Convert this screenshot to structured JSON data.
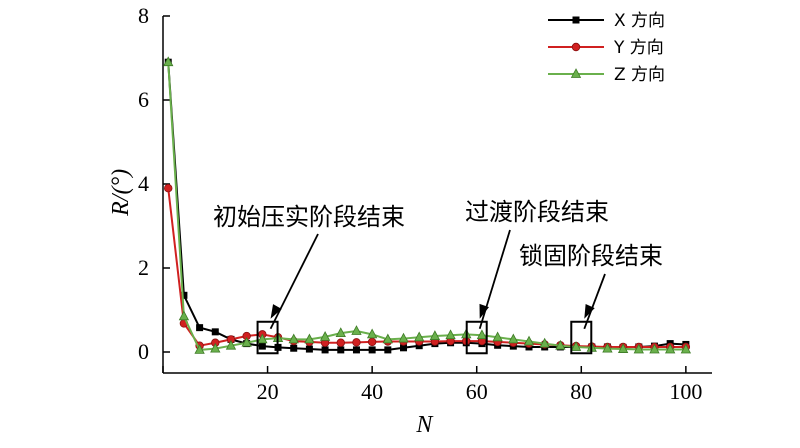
{
  "chart_data": {
    "type": "line",
    "xlabel": "N",
    "ylabel": "R/(°)",
    "xlim": [
      0,
      105
    ],
    "ylim": [
      -0.5,
      8
    ],
    "xticks": [
      0,
      20,
      40,
      60,
      80,
      100
    ],
    "yticks": [
      0,
      2,
      4,
      6,
      8
    ],
    "xtick_labels": [
      "",
      "20",
      "40",
      "60",
      "80",
      "100"
    ],
    "ytick_labels": [
      "0",
      "2",
      "4",
      "6",
      "8"
    ],
    "grid": false,
    "legend_position": "top-right",
    "series": [
      {
        "name": "X 方向",
        "color": "#000000",
        "marker": "square",
        "x": [
          1,
          4,
          7,
          10,
          13,
          16,
          19,
          22,
          25,
          28,
          31,
          34,
          37,
          40,
          43,
          46,
          49,
          52,
          55,
          58,
          61,
          64,
          67,
          70,
          73,
          76,
          79,
          82,
          85,
          88,
          91,
          94,
          97,
          100
        ],
        "y": [
          6.9,
          1.35,
          0.58,
          0.48,
          0.3,
          0.2,
          0.14,
          0.11,
          0.09,
          0.07,
          0.05,
          0.05,
          0.05,
          0.05,
          0.05,
          0.1,
          0.15,
          0.2,
          0.22,
          0.22,
          0.2,
          0.16,
          0.14,
          0.12,
          0.12,
          0.12,
          0.12,
          0.12,
          0.12,
          0.11,
          0.12,
          0.14,
          0.2,
          0.18
        ]
      },
      {
        "name": "Y 方向",
        "color": "#d02020",
        "marker": "circle",
        "x": [
          1,
          4,
          7,
          10,
          13,
          16,
          19,
          22,
          25,
          28,
          31,
          34,
          37,
          40,
          43,
          46,
          49,
          52,
          55,
          58,
          61,
          64,
          67,
          70,
          73,
          76,
          79,
          82,
          85,
          88,
          91,
          94,
          97,
          100
        ],
        "y": [
          3.9,
          0.68,
          0.15,
          0.22,
          0.3,
          0.38,
          0.42,
          0.35,
          0.26,
          0.24,
          0.22,
          0.22,
          0.23,
          0.24,
          0.25,
          0.25,
          0.25,
          0.25,
          0.26,
          0.26,
          0.26,
          0.24,
          0.22,
          0.2,
          0.18,
          0.16,
          0.14,
          0.13,
          0.12,
          0.12,
          0.12,
          0.12,
          0.12,
          0.12
        ]
      },
      {
        "name": "Z 方向",
        "color": "#6ab04c",
        "marker": "triangle",
        "x": [
          1,
          4,
          7,
          10,
          13,
          16,
          19,
          22,
          25,
          28,
          31,
          34,
          37,
          40,
          43,
          46,
          49,
          52,
          55,
          58,
          61,
          64,
          67,
          70,
          73,
          76,
          79,
          82,
          85,
          88,
          91,
          94,
          97,
          100
        ],
        "y": [
          6.9,
          0.85,
          0.05,
          0.08,
          0.15,
          0.22,
          0.3,
          0.33,
          0.3,
          0.3,
          0.36,
          0.45,
          0.5,
          0.42,
          0.3,
          0.32,
          0.35,
          0.38,
          0.4,
          0.42,
          0.4,
          0.35,
          0.3,
          0.25,
          0.2,
          0.15,
          0.12,
          0.1,
          0.08,
          0.07,
          0.06,
          0.06,
          0.06,
          0.06
        ]
      }
    ],
    "annotations": [
      {
        "text": "初始压实阶段结束",
        "x": 20
      },
      {
        "text": "过渡阶段结束",
        "x": 60
      },
      {
        "text": "锁固阶段结束",
        "x": 80
      }
    ]
  }
}
